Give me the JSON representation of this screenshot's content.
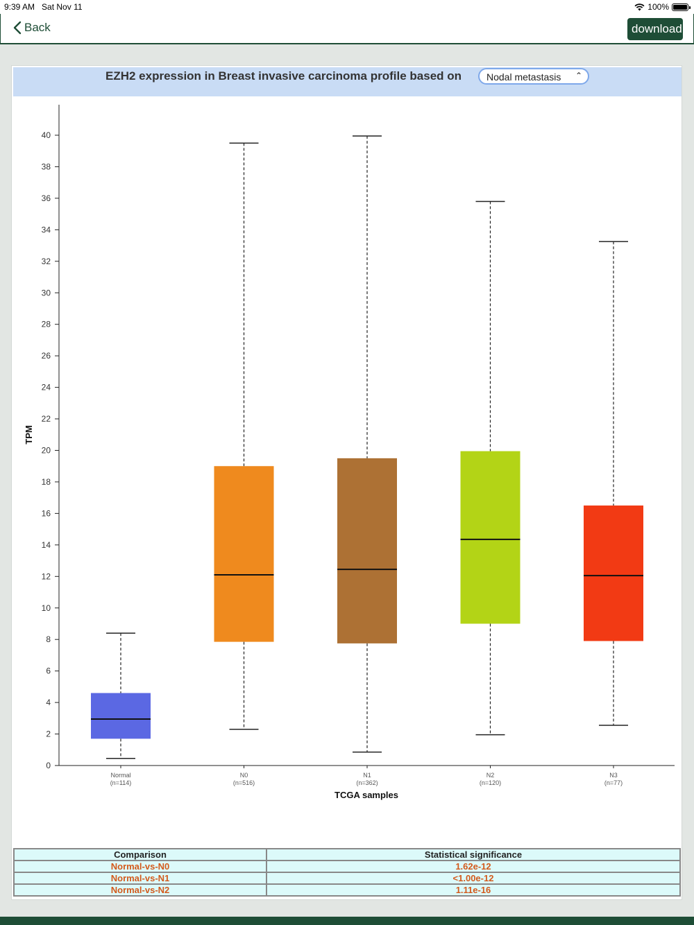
{
  "status": {
    "time": "9:39 AM",
    "date": "Sat Nov 11",
    "battery": "100%"
  },
  "nav": {
    "back_label": "Back",
    "download_label": "download"
  },
  "card": {
    "title": "EZH2 expression in Breast invasive carcinoma profile based on",
    "select_value": "Nodal metastasis"
  },
  "chart_data": {
    "type": "box",
    "ylabel": "TPM",
    "xlabel": "TCGA samples",
    "ylim": [
      0,
      42
    ],
    "yticks": [
      0,
      2,
      4,
      6,
      8,
      10,
      12,
      14,
      16,
      18,
      20,
      22,
      24,
      26,
      28,
      30,
      32,
      34,
      36,
      38,
      40
    ],
    "groups": [
      {
        "label": "Normal",
        "n": "(n=114)",
        "color": "#5b68e3",
        "min": 0.45,
        "q1": 1.7,
        "median": 2.95,
        "q3": 4.6,
        "max": 8.4
      },
      {
        "label": "N0",
        "n": "(n=516)",
        "color": "#ef8a1e",
        "min": 2.3,
        "q1": 7.85,
        "median": 12.1,
        "q3": 19.0,
        "max": 39.5
      },
      {
        "label": "N1",
        "n": "(n=362)",
        "color": "#ad7134",
        "min": 0.85,
        "q1": 7.75,
        "median": 12.45,
        "q3": 19.5,
        "max": 39.95
      },
      {
        "label": "N2",
        "n": "(n=120)",
        "color": "#b3d416",
        "min": 1.95,
        "q1": 9.0,
        "median": 14.35,
        "q3": 19.95,
        "max": 35.8
      },
      {
        "label": "N3",
        "n": "(n=77)",
        "color": "#f23a14",
        "min": 2.55,
        "q1": 7.9,
        "median": 12.05,
        "q3": 16.5,
        "max": 33.25
      }
    ]
  },
  "stats_table": {
    "headers": [
      "Comparison",
      "Statistical significance"
    ],
    "rows": [
      [
        "Normal-vs-N0",
        "1.62e-12"
      ],
      [
        "Normal-vs-N1",
        "<1.00e-12"
      ],
      [
        "Normal-vs-N2",
        "1.11e-16"
      ]
    ]
  }
}
